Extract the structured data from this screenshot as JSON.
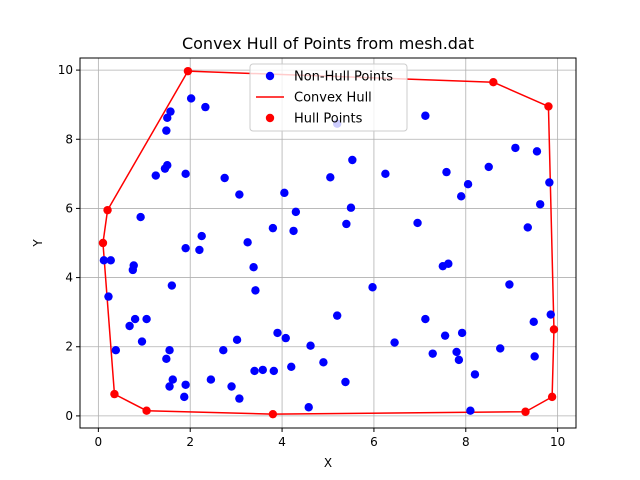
{
  "chart_data": {
    "type": "scatter",
    "title": "Convex Hull of Points from mesh.dat",
    "xlabel": "X",
    "ylabel": "Y",
    "xlim": [
      -0.4,
      10.4
    ],
    "ylim": [
      -0.35,
      10.35
    ],
    "xticks": [
      0,
      2,
      4,
      6,
      8,
      10
    ],
    "yticks": [
      0,
      2,
      4,
      6,
      8,
      10
    ],
    "grid": true,
    "legend_position": "top-center",
    "series": [
      {
        "name": "Non-Hull Points",
        "kind": "scatter",
        "color": "#0000ff",
        "points": [
          [
            0.12,
            4.5
          ],
          [
            0.22,
            3.45
          ],
          [
            0.27,
            4.5
          ],
          [
            0.38,
            1.9
          ],
          [
            0.68,
            2.6
          ],
          [
            0.75,
            4.22
          ],
          [
            0.77,
            4.35
          ],
          [
            0.8,
            2.8
          ],
          [
            0.92,
            5.75
          ],
          [
            0.95,
            2.15
          ],
          [
            1.05,
            2.8
          ],
          [
            1.25,
            6.95
          ],
          [
            1.45,
            7.15
          ],
          [
            1.48,
            1.65
          ],
          [
            1.48,
            8.25
          ],
          [
            1.5,
            8.62
          ],
          [
            1.5,
            7.25
          ],
          [
            1.55,
            0.85
          ],
          [
            1.55,
            1.9
          ],
          [
            1.57,
            8.8
          ],
          [
            1.6,
            3.77
          ],
          [
            1.62,
            1.05
          ],
          [
            1.87,
            0.55
          ],
          [
            1.9,
            0.9
          ],
          [
            1.9,
            4.85
          ],
          [
            1.9,
            7.0
          ],
          [
            2.02,
            9.18
          ],
          [
            2.2,
            4.8
          ],
          [
            2.25,
            5.2
          ],
          [
            2.33,
            8.93
          ],
          [
            2.45,
            1.05
          ],
          [
            2.72,
            1.9
          ],
          [
            2.75,
            6.88
          ],
          [
            2.9,
            0.85
          ],
          [
            3.02,
            2.2
          ],
          [
            3.07,
            0.5
          ],
          [
            3.07,
            6.4
          ],
          [
            3.25,
            5.02
          ],
          [
            3.38,
            4.3
          ],
          [
            3.4,
            1.3
          ],
          [
            3.42,
            3.63
          ],
          [
            3.58,
            1.33
          ],
          [
            3.8,
            5.43
          ],
          [
            3.82,
            1.3
          ],
          [
            3.9,
            2.4
          ],
          [
            4.05,
            6.45
          ],
          [
            4.08,
            2.25
          ],
          [
            4.2,
            1.42
          ],
          [
            4.25,
            5.35
          ],
          [
            4.3,
            5.9
          ],
          [
            4.58,
            0.25
          ],
          [
            4.62,
            2.03
          ],
          [
            4.9,
            1.55
          ],
          [
            5.05,
            6.9
          ],
          [
            5.2,
            8.45
          ],
          [
            5.2,
            2.9
          ],
          [
            5.38,
            0.98
          ],
          [
            5.4,
            5.55
          ],
          [
            5.5,
            6.02
          ],
          [
            5.53,
            7.4
          ],
          [
            5.97,
            3.72
          ],
          [
            6.25,
            7.0
          ],
          [
            6.45,
            2.12
          ],
          [
            6.95,
            5.58
          ],
          [
            7.12,
            8.68
          ],
          [
            7.12,
            2.8
          ],
          [
            7.28,
            1.8
          ],
          [
            7.5,
            4.33
          ],
          [
            7.55,
            2.32
          ],
          [
            7.58,
            7.05
          ],
          [
            7.62,
            4.4
          ],
          [
            7.8,
            1.85
          ],
          [
            7.85,
            1.62
          ],
          [
            7.9,
            6.35
          ],
          [
            7.92,
            2.4
          ],
          [
            8.05,
            6.7
          ],
          [
            8.1,
            0.15
          ],
          [
            8.2,
            1.2
          ],
          [
            8.5,
            7.2
          ],
          [
            8.75,
            1.95
          ],
          [
            8.95,
            3.8
          ],
          [
            9.08,
            7.75
          ],
          [
            9.35,
            5.45
          ],
          [
            9.48,
            2.72
          ],
          [
            9.5,
            1.72
          ],
          [
            9.55,
            7.65
          ],
          [
            9.62,
            6.12
          ],
          [
            9.82,
            6.75
          ],
          [
            9.85,
            2.93
          ]
        ]
      },
      {
        "name": "Convex Hull",
        "kind": "line",
        "color": "#ff0000",
        "points": [
          [
            0.1,
            5.0
          ],
          [
            0.2,
            5.95
          ],
          [
            1.95,
            9.97
          ],
          [
            8.6,
            9.65
          ],
          [
            9.8,
            8.95
          ],
          [
            9.92,
            2.5
          ],
          [
            9.88,
            0.55
          ],
          [
            9.3,
            0.12
          ],
          [
            3.8,
            0.05
          ],
          [
            1.05,
            0.15
          ],
          [
            0.35,
            0.63
          ],
          [
            0.1,
            5.0
          ]
        ]
      },
      {
        "name": "Hull Points",
        "kind": "scatter",
        "color": "#ff0000",
        "points": [
          [
            0.1,
            5.0
          ],
          [
            0.2,
            5.95
          ],
          [
            1.95,
            9.97
          ],
          [
            8.6,
            9.65
          ],
          [
            9.8,
            8.95
          ],
          [
            9.92,
            2.5
          ],
          [
            9.88,
            0.55
          ],
          [
            9.3,
            0.12
          ],
          [
            3.8,
            0.05
          ],
          [
            1.05,
            0.15
          ],
          [
            0.35,
            0.63
          ]
        ]
      }
    ]
  }
}
